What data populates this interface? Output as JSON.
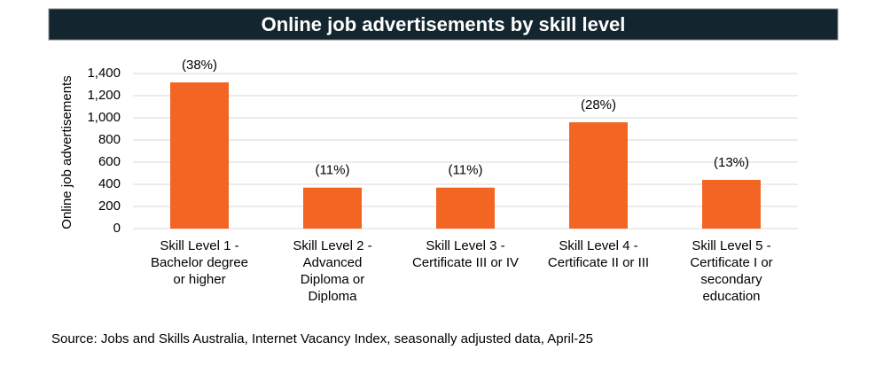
{
  "chart_data": {
    "type": "bar",
    "title": "Online job advertisements by skill level",
    "y_label": "Online job advertisements",
    "categories": [
      [
        "Skill Level 1 -",
        "Bachelor degree",
        "or higher"
      ],
      [
        "Skill Level 2 -",
        "Advanced",
        "Diploma or",
        "Diploma"
      ],
      [
        "Skill Level 3 -",
        "Certificate III or IV"
      ],
      [
        "Skill Level 4 -",
        "Certificate II or III"
      ],
      [
        "Skill Level 5 -",
        "Certificate I or",
        "secondary",
        "education"
      ]
    ],
    "values": [
      1320,
      370,
      370,
      960,
      440
    ],
    "share_labels": [
      "(38%)",
      "(11%)",
      "(11%)",
      "(28%)",
      "(13%)"
    ],
    "color": "#f26522",
    "ylim": [
      0,
      1400
    ],
    "yticks": [
      0,
      200,
      400,
      600,
      800,
      {
        "value": 1000,
        "label": "1,000"
      },
      {
        "value": 1200,
        "label": "1,200"
      },
      {
        "value": 1400,
        "label": "1,400"
      }
    ],
    "grid": true,
    "source": "Source: Jobs and Skills Australia, Internet Vacancy Index, seasonally adjusted data, April-25"
  }
}
